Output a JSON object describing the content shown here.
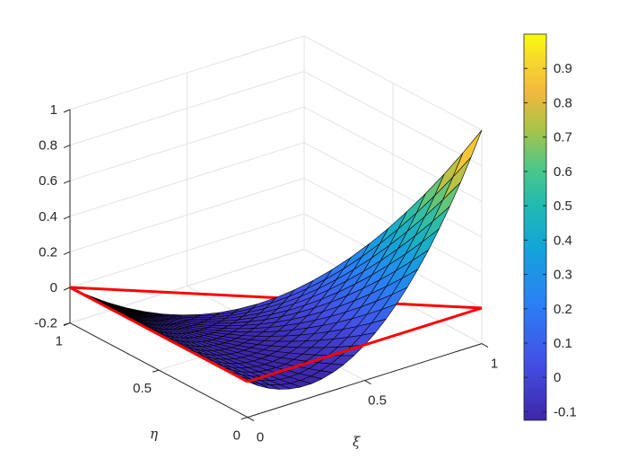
{
  "chart_data": {
    "type": "surface",
    "title": "",
    "xlabel": "ξ",
    "ylabel": "η",
    "zlabel": "",
    "xlim": [
      0,
      1
    ],
    "ylim": [
      0,
      1
    ],
    "zlim": [
      -0.2,
      1
    ],
    "x_ticks": [
      "0",
      "0.5",
      "1"
    ],
    "y_ticks": [
      "0",
      "0.5",
      "1"
    ],
    "z_ticks": [
      "-0.2",
      "0",
      "0.2",
      "0.4",
      "0.6",
      "0.8",
      "1"
    ],
    "grid": true,
    "domain": "triangle xi>=0, eta>=0, xi+eta<=1",
    "surface_coefficients": {
      "xi_squared": 2,
      "xi": -1,
      "constant": 0
    },
    "surface_range": [
      -0.125,
      1
    ],
    "outline": {
      "color": "#ff0000",
      "vertices": [
        [
          0,
          0,
          0
        ],
        [
          1,
          0,
          0
        ],
        [
          0,
          1,
          0
        ]
      ]
    },
    "colorbar": {
      "limits": [
        -0.125,
        1
      ],
      "ticks": [
        "-0.1",
        "0",
        "0.1",
        "0.2",
        "0.3",
        "0.4",
        "0.5",
        "0.6",
        "0.7",
        "0.8",
        "0.9"
      ],
      "colormap": "parula"
    }
  }
}
